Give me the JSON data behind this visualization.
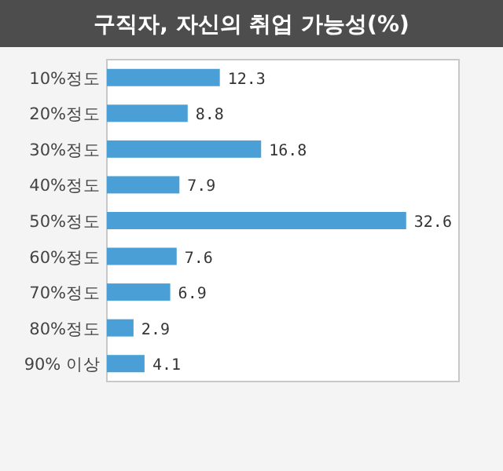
{
  "chart_data": {
    "type": "bar",
    "orientation": "horizontal",
    "title": "구직자, 자신의 취업 가능성(%)",
    "categories": [
      "10%정도",
      "20%정도",
      "30%정도",
      "40%정도",
      "50%정도",
      "60%정도",
      "70%정도",
      "80%정도",
      "90% 이상"
    ],
    "values": [
      12.3,
      8.8,
      16.8,
      7.9,
      32.6,
      7.6,
      6.9,
      2.9,
      4.1
    ],
    "color": "#4a9fd6",
    "data_labels": true
  }
}
